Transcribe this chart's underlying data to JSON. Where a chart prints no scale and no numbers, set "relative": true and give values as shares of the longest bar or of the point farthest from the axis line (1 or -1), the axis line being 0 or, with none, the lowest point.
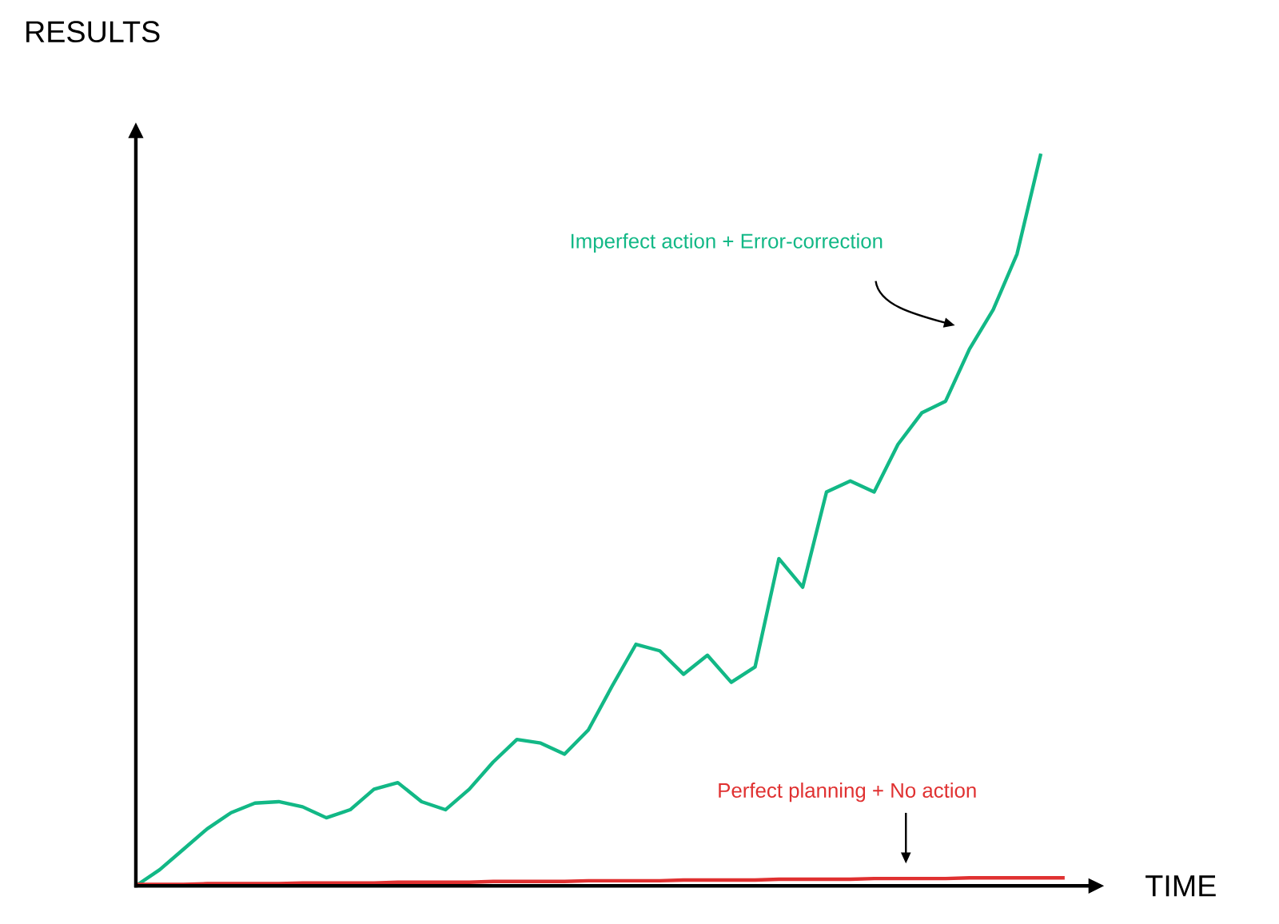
{
  "chart_data": {
    "type": "line",
    "relative": true,
    "xlabel": "TIME",
    "ylabel": "RESULTS",
    "categories": [
      null,
      null,
      null,
      null,
      null,
      null,
      null,
      null,
      null,
      null,
      null,
      null,
      null,
      null,
      null,
      null,
      null,
      null,
      null,
      null,
      null,
      null,
      null,
      null,
      null,
      null,
      null,
      null,
      null,
      null,
      null,
      null,
      null,
      null,
      null,
      null,
      null,
      null,
      null,
      null
    ],
    "series": [
      {
        "name": "Imperfect action + Error-correction",
        "color": "#12b886",
        "values": [
          0,
          0.022,
          0.05,
          0.078,
          0.1,
          0.113,
          0.115,
          0.108,
          0.093,
          0.104,
          0.132,
          0.141,
          0.115,
          0.104,
          0.132,
          0.169,
          0.2,
          0.195,
          0.18,
          0.213,
          0.273,
          0.33,
          0.321,
          0.289,
          0.315,
          0.278,
          0.299,
          0.447,
          0.408,
          0.538,
          0.553,
          0.538,
          0.603,
          0.646,
          0.662,
          0.733,
          0.787,
          0.863,
          1.0,
          null
        ]
      },
      {
        "name": "Perfect planning + No action",
        "color": "#e03131",
        "values": [
          0.002,
          0.002,
          0.002,
          0.003,
          0.003,
          0.003,
          0.003,
          0.004,
          0.004,
          0.004,
          0.004,
          0.005,
          0.005,
          0.005,
          0.005,
          0.006,
          0.006,
          0.006,
          0.006,
          0.007,
          0.007,
          0.007,
          0.007,
          0.008,
          0.008,
          0.008,
          0.008,
          0.009,
          0.009,
          0.009,
          0.009,
          0.01,
          0.01,
          0.01,
          0.01,
          0.011,
          0.011,
          0.011,
          0.011,
          0.011
        ]
      }
    ]
  }
}
